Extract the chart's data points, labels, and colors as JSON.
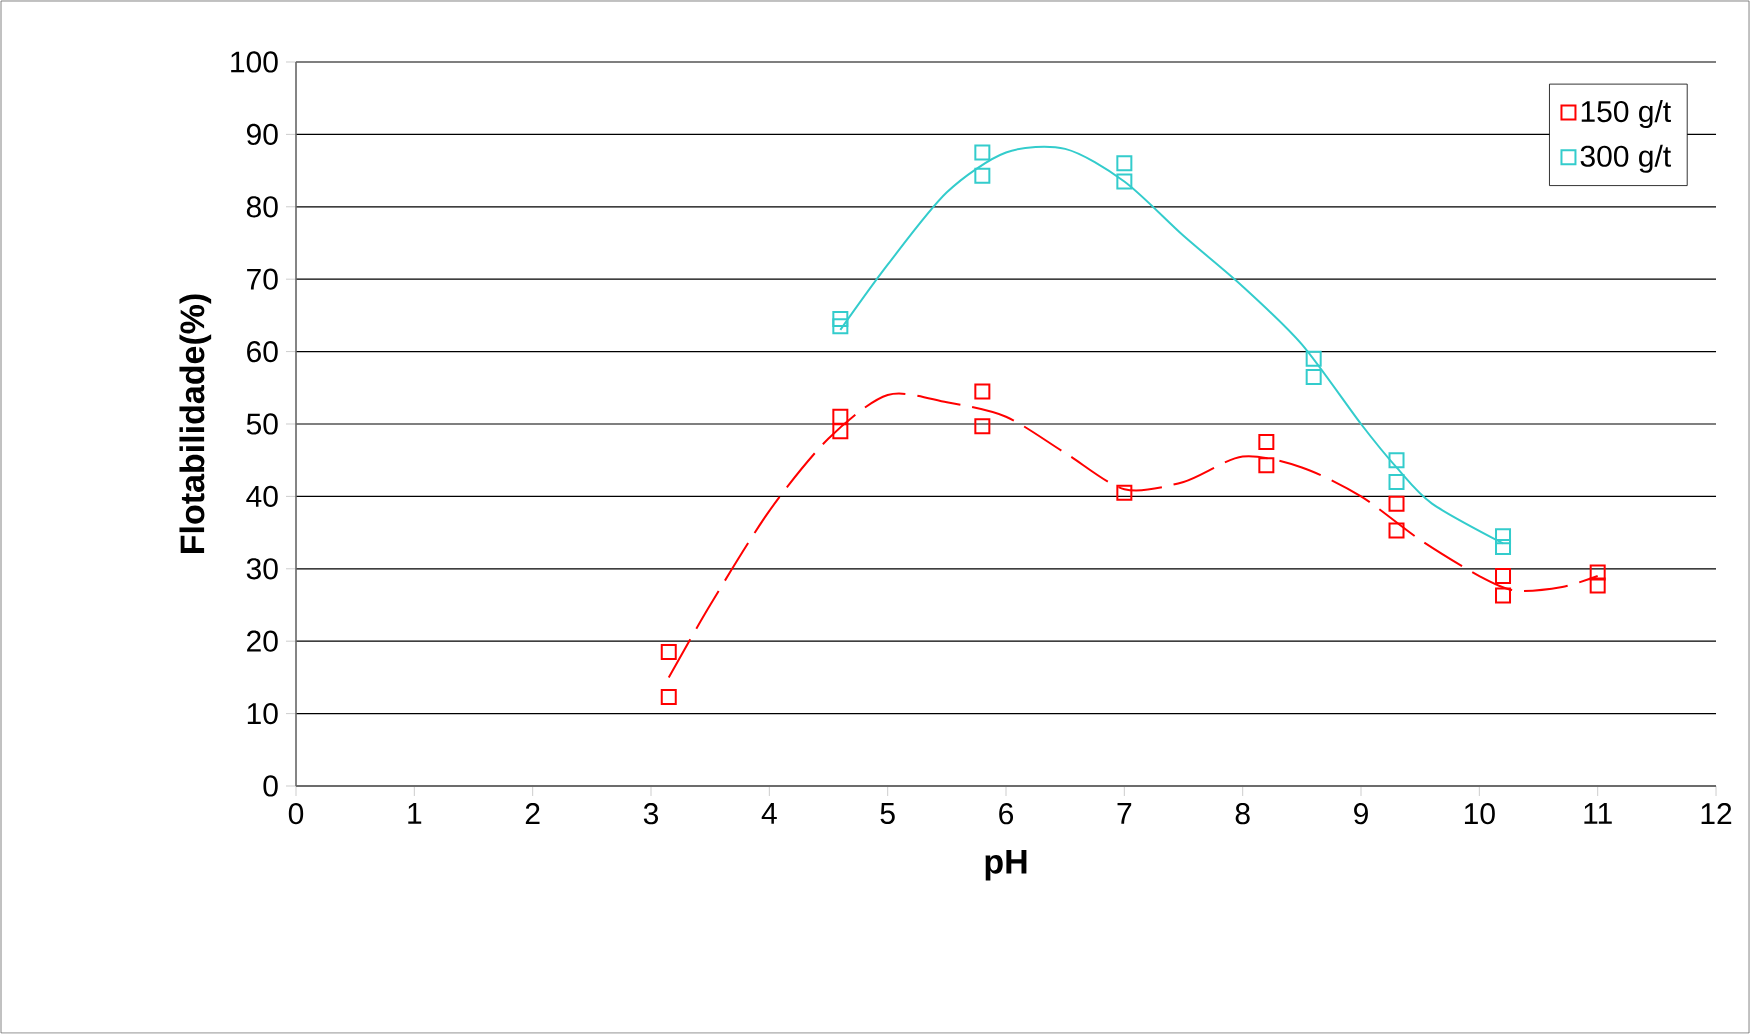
{
  "chart_data": {
    "type": "scatter",
    "xlabel": "pH",
    "ylabel": "Flotabilidade(%)",
    "xlim": [
      0,
      12
    ],
    "ylim": [
      0,
      100
    ],
    "xticks": [
      0,
      1,
      2,
      3,
      4,
      5,
      6,
      7,
      8,
      9,
      10,
      11,
      12
    ],
    "yticks": [
      0,
      10,
      20,
      30,
      40,
      50,
      60,
      70,
      80,
      90,
      100
    ],
    "grid": "y",
    "legend": "top right",
    "series": [
      {
        "name": "150 g/t",
        "color": "#ff0000",
        "marker": "square",
        "x": [
          3.15,
          3.15,
          4.6,
          4.6,
          5.8,
          5.8,
          7.0,
          8.2,
          8.2,
          9.3,
          9.3,
          10.2,
          10.2,
          11.0,
          11.0
        ],
        "values": [
          18.5,
          12.3,
          51,
          49,
          54.5,
          49.7,
          40.5,
          47.5,
          44.3,
          39,
          35.3,
          29,
          26.3,
          29.5,
          27.7
        ]
      },
      {
        "name": "300 g/t",
        "color": "#33cccc",
        "marker": "square",
        "x": [
          4.6,
          4.6,
          5.8,
          5.8,
          7.0,
          7.0,
          8.6,
          8.6,
          9.3,
          9.3,
          10.2,
          10.2
        ],
        "values": [
          64.5,
          63.5,
          87.5,
          84.3,
          86,
          83.5,
          59,
          56.5,
          45,
          42,
          34.5,
          33
        ]
      },
      {
        "type": "line",
        "color": "#ff0000",
        "marker": "none",
        "line_style": "dashed",
        "x": [
          3.15,
          3.5,
          4,
          4.5,
          5,
          5.5,
          6,
          6.5,
          7,
          7.5,
          8,
          8.5,
          9,
          9.5,
          10,
          10.3,
          10.7,
          11
        ],
        "values": [
          15,
          25,
          38,
          48,
          54,
          53,
          51,
          46,
          41,
          42,
          45.5,
          44,
          40,
          34,
          29,
          27,
          27.5,
          29
        ]
      },
      {
        "type": "line",
        "color": "#33cccc",
        "marker": "none",
        "line_style": "solid",
        "x": [
          4.6,
          5,
          5.5,
          6,
          6.5,
          7,
          7.5,
          8,
          8.5,
          9,
          9.3,
          9.6,
          10.2
        ],
        "values": [
          63,
          72,
          82,
          87.5,
          88,
          83.5,
          76,
          69,
          61,
          50,
          44,
          39,
          33.5
        ]
      }
    ]
  }
}
